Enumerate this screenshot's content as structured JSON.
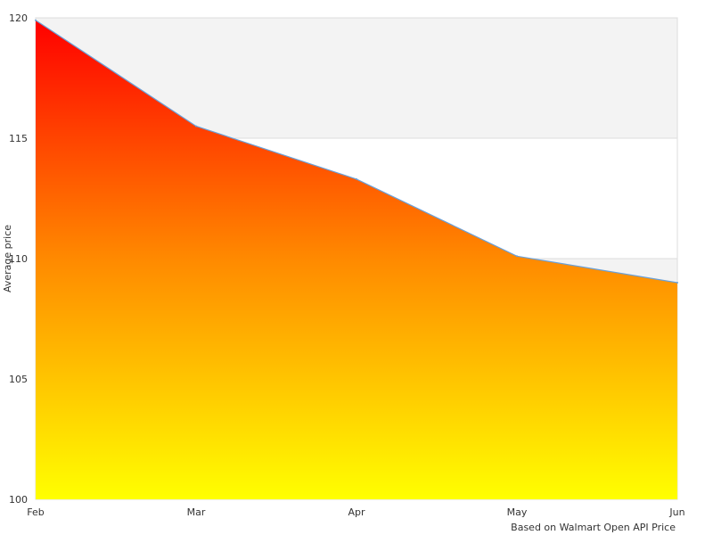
{
  "chart_data": {
    "type": "area",
    "categories": [
      "Feb",
      "Mar",
      "Apr",
      "May",
      "Jun"
    ],
    "values": [
      119.9,
      115.5,
      113.3,
      110.1,
      109.0
    ],
    "title": "",
    "xlabel": "",
    "ylabel": "Average price",
    "ylim": [
      100,
      120
    ],
    "yticks": [
      100,
      105,
      110,
      115,
      120
    ],
    "grid": "alternating horizontal bands",
    "legend": "none",
    "credit": "Based on Walmart Open API Price",
    "colors": {
      "gradient_top": "#ff0000",
      "gradient_mid": "#ff8a00",
      "gradient_bottom": "#ffff00",
      "line": "#6aa0d8",
      "band": "#f3f3f3",
      "border": "#dddddd",
      "text": "#333333"
    }
  }
}
